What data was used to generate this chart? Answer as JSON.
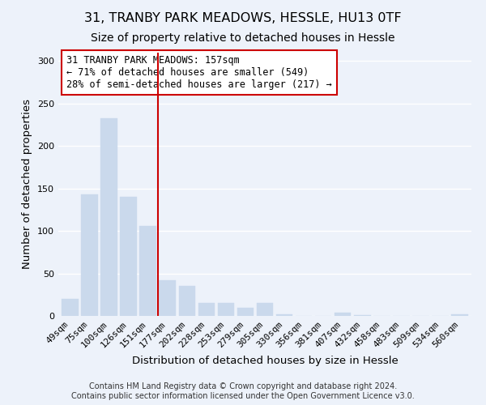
{
  "title": "31, TRANBY PARK MEADOWS, HESSLE, HU13 0TF",
  "subtitle": "Size of property relative to detached houses in Hessle",
  "xlabel": "Distribution of detached houses by size in Hessle",
  "ylabel": "Number of detached properties",
  "bar_labels": [
    "49sqm",
    "75sqm",
    "100sqm",
    "126sqm",
    "151sqm",
    "177sqm",
    "202sqm",
    "228sqm",
    "253sqm",
    "279sqm",
    "305sqm",
    "330sqm",
    "356sqm",
    "381sqm",
    "407sqm",
    "432sqm",
    "458sqm",
    "483sqm",
    "509sqm",
    "534sqm",
    "560sqm"
  ],
  "bar_values": [
    20,
    143,
    233,
    140,
    106,
    42,
    35,
    15,
    15,
    10,
    15,
    2,
    0,
    0,
    4,
    1,
    0,
    0,
    0,
    0,
    2
  ],
  "bar_color": "#cad9ec",
  "vline_x": 4.5,
  "vline_color": "#cc0000",
  "ylim": [
    0,
    310
  ],
  "yticks": [
    0,
    50,
    100,
    150,
    200,
    250,
    300
  ],
  "annotation_title": "31 TRANBY PARK MEADOWS: 157sqm",
  "annotation_line1": "← 71% of detached houses are smaller (549)",
  "annotation_line2": "28% of semi-detached houses are larger (217) →",
  "annotation_box_color": "#ffffff",
  "annotation_box_edgecolor": "#cc0000",
  "footer_line1": "Contains HM Land Registry data © Crown copyright and database right 2024.",
  "footer_line2": "Contains public sector information licensed under the Open Government Licence v3.0.",
  "bg_color": "#edf2fa",
  "plot_bg_color": "#edf2fa",
  "title_fontsize": 11.5,
  "subtitle_fontsize": 10,
  "axis_label_fontsize": 9.5,
  "tick_fontsize": 8,
  "annotation_fontsize": 8.5,
  "footer_fontsize": 7
}
